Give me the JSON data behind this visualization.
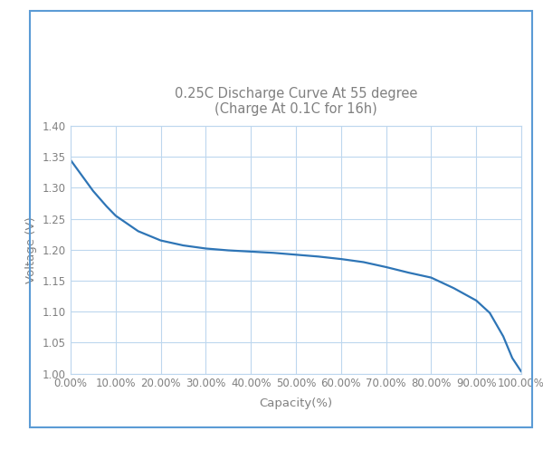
{
  "title_line1": "0.25C Discharge Curve At 55 degree",
  "title_line2": "(Charge At 0.1C for 16h)",
  "xlabel": "Capacity(%)",
  "ylabel": "Voltage (V)",
  "title_color": "#808080",
  "axis_label_color": "#808080",
  "tick_label_color": "#808080",
  "line_color": "#2e75b6",
  "grid_color": "#bdd7ee",
  "border_color": "#5b9bd5",
  "background_color": "#ffffff",
  "outer_bg": "#ffffff",
  "ylim": [
    1.0,
    1.4
  ],
  "xlim": [
    0.0,
    1.0
  ],
  "yticks": [
    1.0,
    1.05,
    1.1,
    1.15,
    1.2,
    1.25,
    1.3,
    1.35,
    1.4
  ],
  "xticks": [
    0.0,
    0.1,
    0.2,
    0.3,
    0.4,
    0.5,
    0.6,
    0.7,
    0.8,
    0.9,
    1.0
  ],
  "curve_x": [
    0.0,
    0.02,
    0.05,
    0.08,
    0.1,
    0.15,
    0.2,
    0.25,
    0.3,
    0.35,
    0.4,
    0.45,
    0.5,
    0.55,
    0.6,
    0.65,
    0.7,
    0.75,
    0.8,
    0.85,
    0.9,
    0.93,
    0.96,
    0.98,
    1.0
  ],
  "curve_y": [
    1.345,
    1.325,
    1.295,
    1.27,
    1.255,
    1.23,
    1.215,
    1.207,
    1.202,
    1.199,
    1.197,
    1.195,
    1.192,
    1.189,
    1.185,
    1.18,
    1.172,
    1.163,
    1.155,
    1.138,
    1.118,
    1.098,
    1.06,
    1.025,
    1.003
  ],
  "fig_width": 6.0,
  "fig_height": 4.97,
  "title_fontsize": 10.5,
  "label_fontsize": 9.5,
  "tick_fontsize": 8.5
}
